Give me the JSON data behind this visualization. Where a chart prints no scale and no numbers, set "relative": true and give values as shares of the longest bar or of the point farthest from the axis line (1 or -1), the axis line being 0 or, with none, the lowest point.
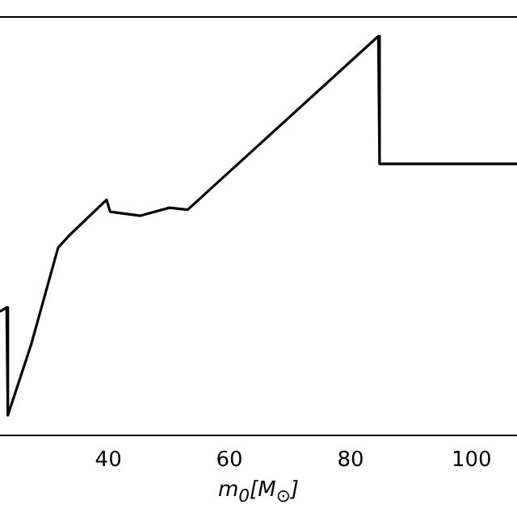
{
  "chart_data": {
    "type": "line",
    "xlabel": "m$_{0}$[M$_{⊙}$]",
    "relative": true,
    "color": "#000000",
    "marker": "none",
    "grid": false,
    "legend": false,
    "x": [
      22.1,
      23.2,
      23.4,
      27.3,
      31.7,
      33.5,
      39.7,
      40.3,
      45.3,
      50.1,
      53.1,
      84.6,
      84.8,
      107.5
    ],
    "values": [
      0.31,
      0.32,
      0.05,
      0.23,
      0.47,
      0.5,
      0.59,
      0.56,
      0.55,
      0.57,
      0.565,
      1.0,
      0.68,
      0.68
    ],
    "xlim": [
      22.1,
      107.5
    ],
    "xticks": [
      40,
      60,
      80,
      100
    ]
  }
}
